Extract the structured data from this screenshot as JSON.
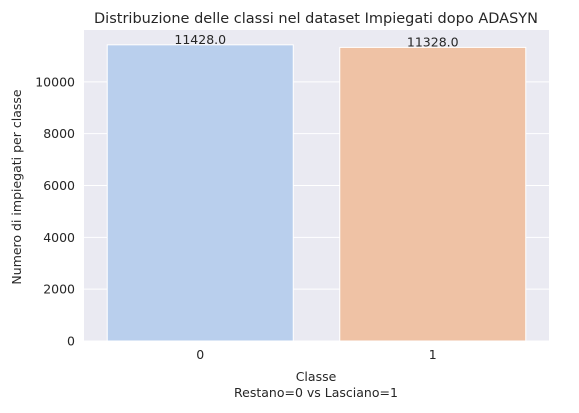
{
  "chart_data": {
    "type": "bar",
    "title": "Distribuzione delle classi nel dataset Impiegati dopo ADASYN",
    "xlabel": "Classe",
    "xlabel2": "Restano=0  vs  Lasciano=1",
    "ylabel": "Numero di impiegati per classe",
    "categories": [
      "0",
      "1"
    ],
    "values": [
      11428,
      11328
    ],
    "data_labels": [
      "11428.0",
      "11328.0"
    ],
    "ylim": [
      0,
      12000
    ],
    "yticks": [
      0,
      2000,
      4000,
      6000,
      8000,
      10000
    ],
    "grid": true,
    "legend": "none",
    "colors": {
      "bars": [
        "#b9cfed",
        "#efc2a5"
      ],
      "plot_background": "#eaeaf2",
      "grid": "#ffffff"
    }
  }
}
